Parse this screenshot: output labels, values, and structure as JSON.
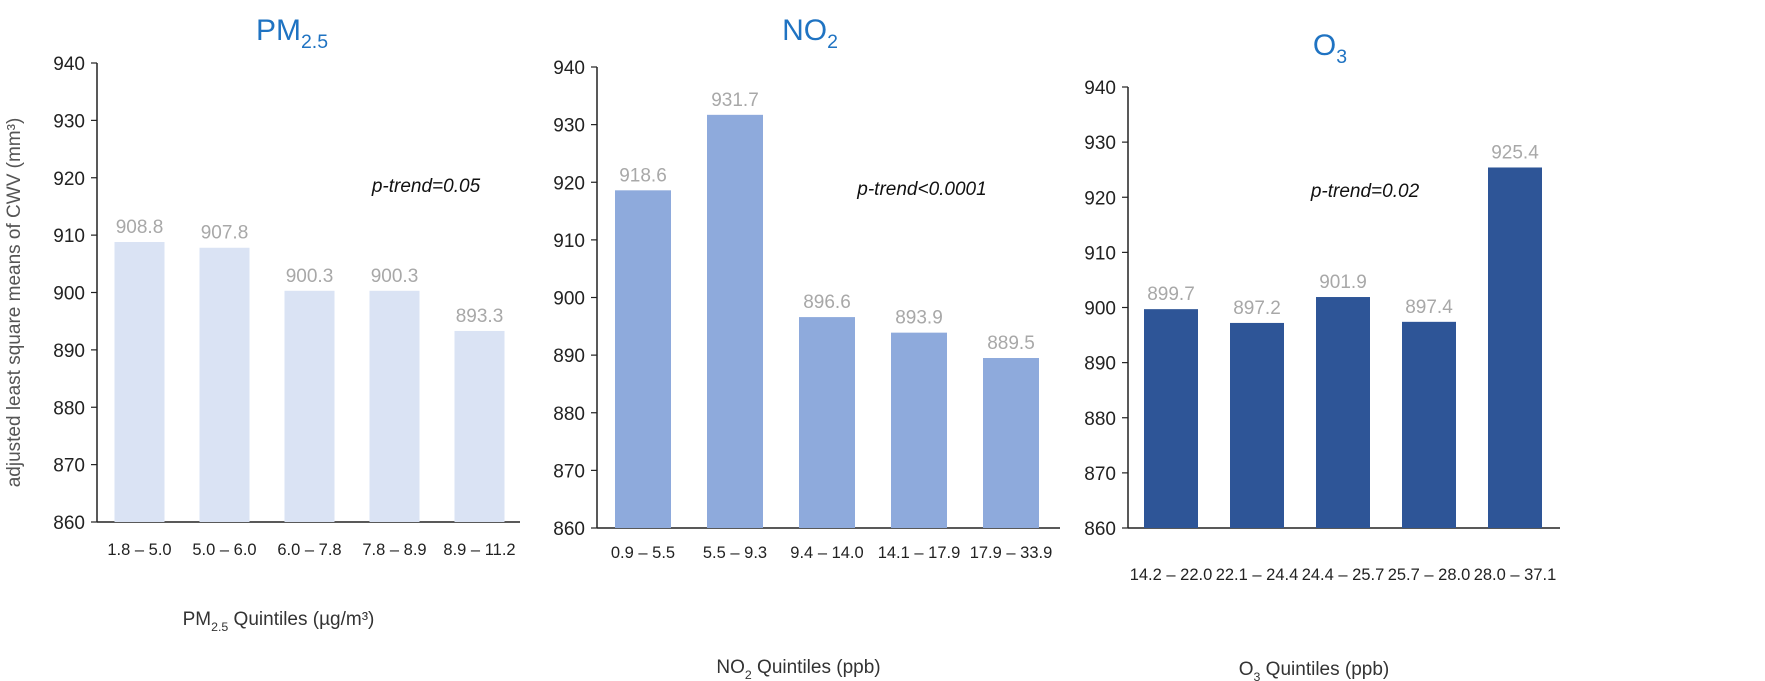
{
  "chart_data": [
    {
      "type": "bar",
      "title": "PM",
      "title_sub": "2.5",
      "ylabel": "adjusted least square means of CWV (mm³)",
      "xlabel": "PM",
      "xlabel_sub": "2.5",
      "xlabel_rest": " Quintiles (µg/m³)",
      "categories": [
        "1.8 – 5.0",
        "5.0 – 6.0",
        "6.0 – 7.8",
        "7.8 – 8.9",
        "8.9 – 11.2"
      ],
      "values": [
        908.8,
        907.8,
        900.3,
        900.3,
        893.3
      ],
      "value_labels": [
        "908.8",
        "907.8",
        "900.3",
        "900.3",
        "893.3"
      ],
      "ylim": [
        860,
        940
      ],
      "yticks": [
        860,
        870,
        880,
        890,
        900,
        910,
        920,
        930,
        940
      ],
      "annotation": "p-trend=0.05",
      "bar_color": "#dae3f4",
      "grid": false
    },
    {
      "type": "bar",
      "title": "NO",
      "title_sub": "2",
      "xlabel": "NO",
      "xlabel_sub": "2",
      "xlabel_rest": " Quintiles (ppb)",
      "categories": [
        "0.9 – 5.5",
        "5.5 – 9.3",
        "9.4 – 14.0",
        "14.1 – 17.9",
        "17.9 – 33.9"
      ],
      "values": [
        918.6,
        931.7,
        896.6,
        893.9,
        889.5
      ],
      "value_labels": [
        "918.6",
        "931.7",
        "896.6",
        "893.9",
        "889.5"
      ],
      "ylim": [
        860,
        940
      ],
      "yticks": [
        860,
        870,
        880,
        890,
        900,
        910,
        920,
        930,
        940
      ],
      "annotation": "p-trend<0.0001",
      "bar_color": "#8eaadc",
      "grid": false
    },
    {
      "type": "bar",
      "title": "O",
      "title_sub": "3",
      "xlabel": "O",
      "xlabel_sub": "3",
      "xlabel_rest": " Quintiles (ppb)",
      "categories": [
        "14.2 – 22.0",
        "22.1 – 24.4",
        "24.4 – 25.7",
        "25.7 – 28.0",
        "28.0 – 37.1"
      ],
      "values": [
        899.7,
        897.2,
        901.9,
        897.4,
        925.4
      ],
      "value_labels": [
        "899.7",
        "897.2",
        "901.9",
        "897.4",
        "925.4"
      ],
      "ylim": [
        860,
        940
      ],
      "yticks": [
        860,
        870,
        880,
        890,
        900,
        910,
        920,
        930,
        940
      ],
      "annotation": "p-trend=0.02",
      "bar_color": "#2e5597",
      "grid": false
    }
  ]
}
